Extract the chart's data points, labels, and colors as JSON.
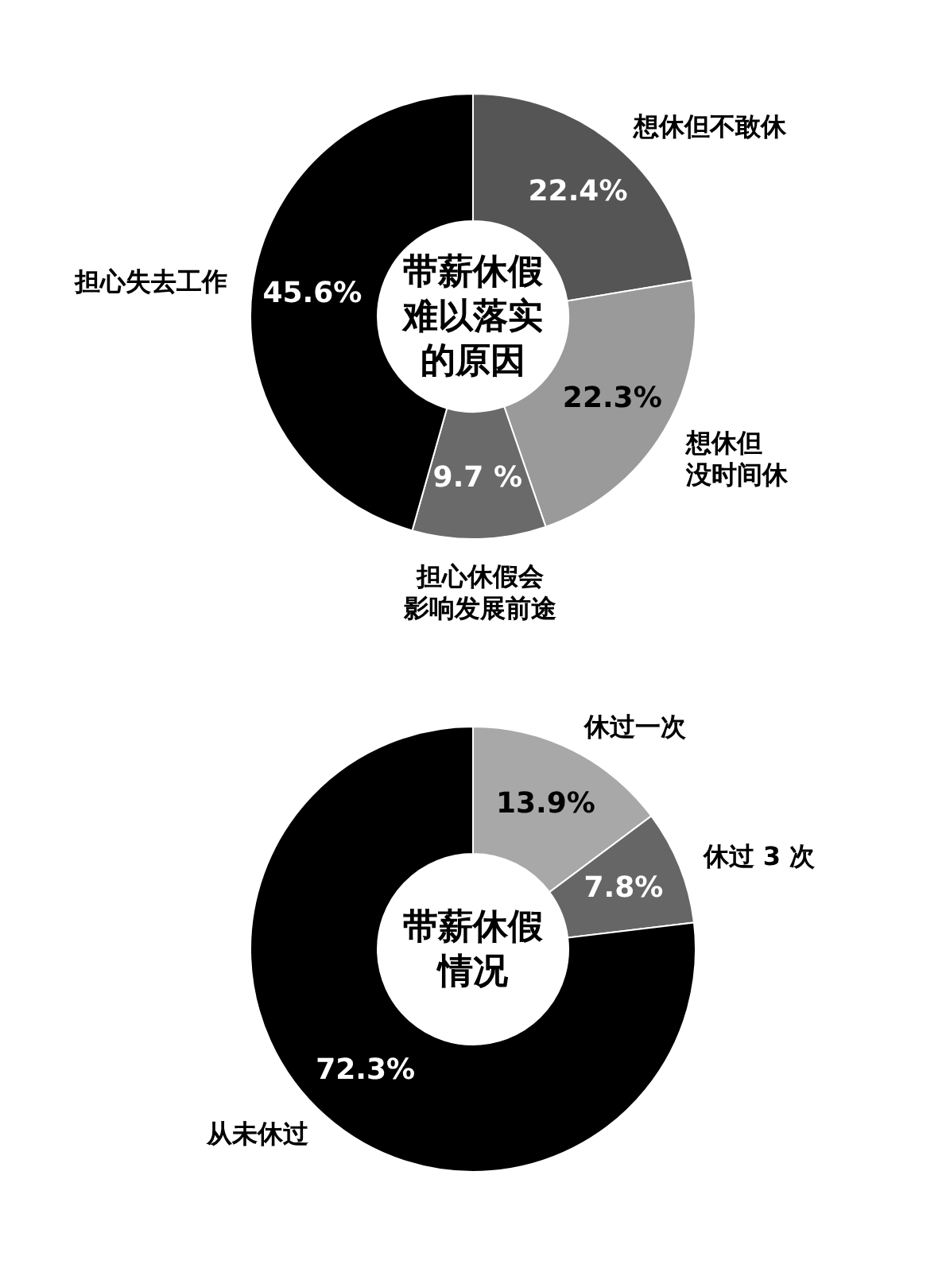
{
  "chart_data": [
    {
      "type": "donut",
      "title": "带薪休假难以落实的原因",
      "categories": [
        "想休但不敢休",
        "想休但没时间休",
        "担心休假会影响发展前途",
        "担心失去工作"
      ],
      "values": [
        22.4,
        22.3,
        9.7,
        45.6
      ],
      "value_labels": [
        "22.4%",
        "22.3%",
        "9.7 %",
        "45.6%"
      ],
      "colors": [
        "#555555",
        "#9a9a9a",
        "#6a6a6a",
        "#000000"
      ]
    },
    {
      "type": "donut",
      "title": "带薪休假情况",
      "categories": [
        "休过一次",
        "休过 3 次",
        "从未休过"
      ],
      "values": [
        13.9,
        7.8,
        72.3
      ],
      "value_labels": [
        "13.9%",
        "7.8%",
        "72.3%"
      ],
      "colors": [
        "#a8a8a8",
        "#666666",
        "#000000"
      ]
    }
  ]
}
